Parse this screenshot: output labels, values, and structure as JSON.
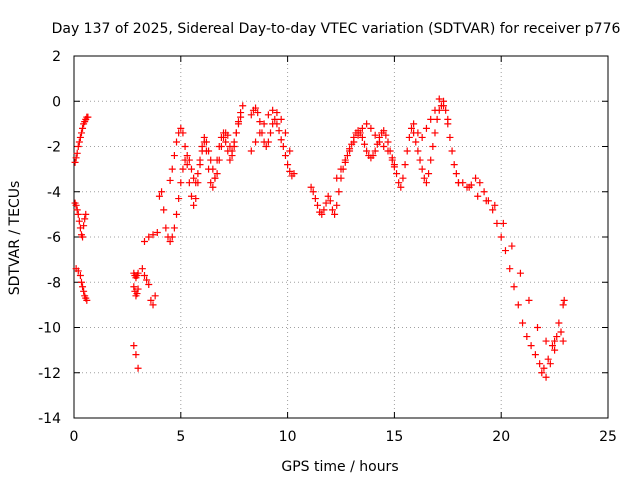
{
  "chart_data": {
    "type": "scatter",
    "title": "Day 137 of 2025, Sidereal Day-to-day VTEC variation (SDTVAR) for receiver p776",
    "xlabel": "GPS time / hours",
    "ylabel": "SDTVAR / TECUs",
    "xlim": [
      0,
      25
    ],
    "ylim": [
      -14,
      2
    ],
    "xticks": [
      0,
      5,
      10,
      15,
      20,
      25
    ],
    "yticks": [
      -14,
      -12,
      -10,
      -8,
      -6,
      -4,
      -2,
      0,
      2
    ],
    "xtick_labels": [
      "0",
      "5",
      "10",
      "15",
      "20",
      "25"
    ],
    "ytick_labels": [
      "-14",
      "-12",
      "-10",
      "-8",
      "-6",
      "-4",
      "-2",
      "0",
      "2"
    ],
    "grid": true,
    "marker": "+",
    "color": "#ff0000",
    "series": [
      {
        "name": "SDTVAR",
        "x": [
          0.05,
          0.1,
          0.15,
          0.2,
          0.25,
          0.3,
          0.35,
          0.4,
          0.45,
          0.5,
          0.55,
          0.6,
          0.65,
          0.05,
          0.1,
          0.15,
          0.2,
          0.25,
          0.3,
          0.35,
          0.4,
          0.45,
          0.5,
          0.55,
          0.1,
          0.2,
          0.3,
          0.35,
          0.4,
          0.45,
          0.5,
          0.55,
          0.6,
          2.8,
          2.85,
          2.9,
          2.95,
          3.0,
          2.8,
          2.85,
          2.9,
          2.95,
          3.0,
          2.8,
          2.9,
          3.0,
          3.2,
          3.3,
          3.4,
          3.5,
          3.6,
          3.7,
          3.8,
          3.3,
          3.5,
          3.7,
          3.9,
          4.0,
          4.1,
          4.2,
          4.3,
          4.4,
          4.5,
          4.6,
          4.7,
          4.8,
          4.9,
          5.0,
          5.1,
          5.2,
          5.3,
          5.4,
          5.5,
          5.6,
          5.7,
          5.8,
          5.9,
          6.0,
          6.1,
          6.2,
          6.3,
          6.4,
          6.5,
          6.6,
          6.7,
          6.8,
          6.9,
          7.0,
          7.1,
          7.2,
          7.3,
          7.4,
          7.5,
          7.6,
          7.7,
          7.8,
          7.9,
          4.5,
          4.6,
          4.7,
          4.8,
          4.9,
          5.0,
          5.1,
          5.2,
          5.3,
          5.4,
          5.5,
          5.6,
          5.7,
          5.8,
          5.9,
          6.0,
          6.1,
          6.2,
          6.3,
          6.4,
          6.5,
          6.6,
          6.7,
          6.8,
          6.9,
          7.0,
          7.1,
          7.2,
          7.3,
          7.4,
          7.5,
          7.6,
          7.7,
          7.8,
          8.3,
          8.4,
          8.5,
          8.6,
          8.7,
          8.8,
          8.9,
          9.0,
          9.1,
          9.2,
          9.3,
          9.4,
          9.5,
          9.6,
          9.7,
          9.8,
          9.9,
          10.0,
          10.1,
          10.2,
          10.3,
          8.3,
          8.5,
          8.7,
          8.9,
          9.1,
          9.3,
          9.5,
          9.7,
          9.9,
          10.1,
          11.1,
          11.2,
          11.3,
          11.4,
          11.5,
          11.6,
          11.7,
          11.8,
          11.9,
          12.0,
          12.1,
          12.2,
          12.3,
          12.4,
          12.5,
          12.6,
          12.7,
          12.8,
          12.9,
          13.0,
          13.1,
          13.2,
          13.3,
          13.4,
          13.5,
          13.6,
          13.7,
          13.8,
          13.9,
          14.0,
          14.1,
          14.2,
          14.3,
          14.4,
          14.5,
          14.6,
          14.7,
          14.8,
          14.9,
          15.0,
          12.3,
          12.5,
          12.7,
          12.9,
          13.1,
          13.3,
          13.5,
          13.7,
          13.9,
          14.1,
          14.3,
          14.5,
          14.7,
          14.9,
          15.0,
          15.1,
          15.2,
          15.3,
          15.4,
          15.5,
          15.6,
          15.7,
          15.8,
          15.9,
          16.0,
          16.1,
          16.2,
          16.3,
          16.4,
          16.5,
          16.6,
          16.7,
          16.8,
          16.9,
          17.0,
          17.1,
          17.2,
          17.3,
          17.4,
          17.5,
          17.6,
          17.7,
          17.8,
          17.9,
          18.0,
          15.9,
          16.1,
          16.3,
          16.5,
          16.7,
          16.9,
          17.1,
          17.3,
          17.5,
          18.0,
          18.2,
          18.4,
          18.6,
          18.8,
          19.0,
          19.2,
          19.4,
          19.6,
          19.8,
          20.0,
          20.2,
          20.4,
          20.6,
          20.8,
          21.0,
          21.2,
          21.4,
          21.6,
          21.8,
          22.0,
          22.2,
          22.4,
          22.6,
          22.8,
          18.5,
          18.9,
          19.3,
          19.7,
          20.1,
          20.5,
          20.9,
          21.3,
          21.7,
          22.1,
          22.5,
          22.9,
          21.9,
          22.1,
          22.3,
          22.5,
          22.7,
          22.9,
          22.95
        ],
        "y": [
          -2.7,
          -2.5,
          -2.3,
          -2.0,
          -1.8,
          -1.6,
          -1.4,
          -1.2,
          -1.0,
          -0.9,
          -0.8,
          -0.7,
          -0.7,
          -4.5,
          -4.6,
          -4.8,
          -5.0,
          -5.3,
          -5.6,
          -5.9,
          -6.0,
          -5.5,
          -5.2,
          -5.0,
          -7.4,
          -7.5,
          -7.7,
          -8.0,
          -8.2,
          -8.4,
          -8.6,
          -8.7,
          -8.8,
          -8.2,
          -8.4,
          -8.6,
          -8.5,
          -8.3,
          -7.6,
          -7.7,
          -7.8,
          -7.7,
          -7.6,
          -10.8,
          -11.2,
          -11.8,
          -7.4,
          -7.7,
          -7.9,
          -8.1,
          -8.8,
          -9.0,
          -8.6,
          -6.2,
          -6.0,
          -5.9,
          -5.8,
          -4.2,
          -4.0,
          -4.8,
          -5.6,
          -6.0,
          -6.2,
          -6.0,
          -5.6,
          -5.0,
          -4.3,
          -3.6,
          -3.0,
          -2.6,
          -2.4,
          -2.6,
          -3.0,
          -3.4,
          -3.6,
          -3.2,
          -2.6,
          -2.0,
          -1.6,
          -1.8,
          -2.2,
          -2.6,
          -3.0,
          -3.4,
          -3.2,
          -2.6,
          -2.0,
          -1.6,
          -1.4,
          -1.5,
          -2.0,
          -2.4,
          -2.0,
          -1.4,
          -0.9,
          -0.5,
          -0.2,
          -3.5,
          -3.0,
          -2.4,
          -1.8,
          -1.4,
          -1.2,
          -1.4,
          -2.0,
          -2.8,
          -3.6,
          -4.2,
          -4.6,
          -4.3,
          -3.6,
          -2.8,
          -2.2,
          -1.8,
          -2.2,
          -3.0,
          -3.6,
          -3.8,
          -3.4,
          -2.6,
          -2.0,
          -1.6,
          -1.4,
          -1.8,
          -2.2,
          -2.6,
          -2.2,
          -1.8,
          -1.4,
          -1.0,
          -0.7,
          -0.6,
          -0.4,
          -0.3,
          -0.5,
          -0.9,
          -1.4,
          -1.8,
          -2.0,
          -1.8,
          -1.4,
          -1.0,
          -0.8,
          -1.0,
          -1.3,
          -1.7,
          -2.0,
          -2.4,
          -2.8,
          -3.1,
          -3.3,
          -3.2,
          -2.2,
          -1.8,
          -1.4,
          -1.0,
          -0.6,
          -0.4,
          -0.5,
          -0.8,
          -1.4,
          -2.2,
          -3.8,
          -4.0,
          -4.3,
          -4.6,
          -4.9,
          -5.0,
          -4.8,
          -4.5,
          -4.2,
          -4.4,
          -4.8,
          -5.0,
          -4.6,
          -4.0,
          -3.4,
          -3.0,
          -2.7,
          -2.4,
          -2.1,
          -1.9,
          -1.6,
          -1.4,
          -1.3,
          -1.4,
          -1.6,
          -1.9,
          -2.2,
          -2.4,
          -2.5,
          -2.4,
          -2.2,
          -1.9,
          -1.6,
          -1.4,
          -1.3,
          -1.5,
          -1.8,
          -2.2,
          -2.6,
          -2.9,
          -3.4,
          -3.0,
          -2.6,
          -2.2,
          -1.8,
          -1.5,
          -1.2,
          -1.0,
          -1.2,
          -1.5,
          -1.8,
          -2.0,
          -2.2,
          -2.5,
          -2.8,
          -3.2,
          -3.6,
          -3.8,
          -3.4,
          -2.8,
          -2.2,
          -1.6,
          -1.2,
          -1.4,
          -1.8,
          -2.2,
          -2.6,
          -3.0,
          -3.4,
          -3.6,
          -3.2,
          -2.6,
          -2.0,
          -1.4,
          -0.8,
          -0.4,
          -0.2,
          0.0,
          -0.4,
          -1.0,
          -1.6,
          -2.2,
          -2.8,
          -3.2,
          -3.6,
          -1.0,
          -1.4,
          -1.6,
          -1.2,
          -0.8,
          -0.4,
          0.1,
          -0.2,
          -0.8,
          -3.6,
          -3.6,
          -3.8,
          -3.7,
          -3.4,
          -3.6,
          -4.0,
          -4.4,
          -4.8,
          -5.4,
          -6.0,
          -6.6,
          -7.4,
          -8.2,
          -9.0,
          -9.8,
          -10.4,
          -10.8,
          -11.2,
          -11.6,
          -11.8,
          -11.4,
          -10.8,
          -10.4,
          -10.2,
          -3.8,
          -4.2,
          -4.4,
          -4.6,
          -5.4,
          -6.4,
          -7.6,
          -8.8,
          -10.0,
          -10.6,
          -11.0,
          -10.6,
          -12.0,
          -12.2,
          -11.6,
          -10.6,
          -9.8,
          -9.0,
          -8.8
        ]
      }
    ]
  }
}
